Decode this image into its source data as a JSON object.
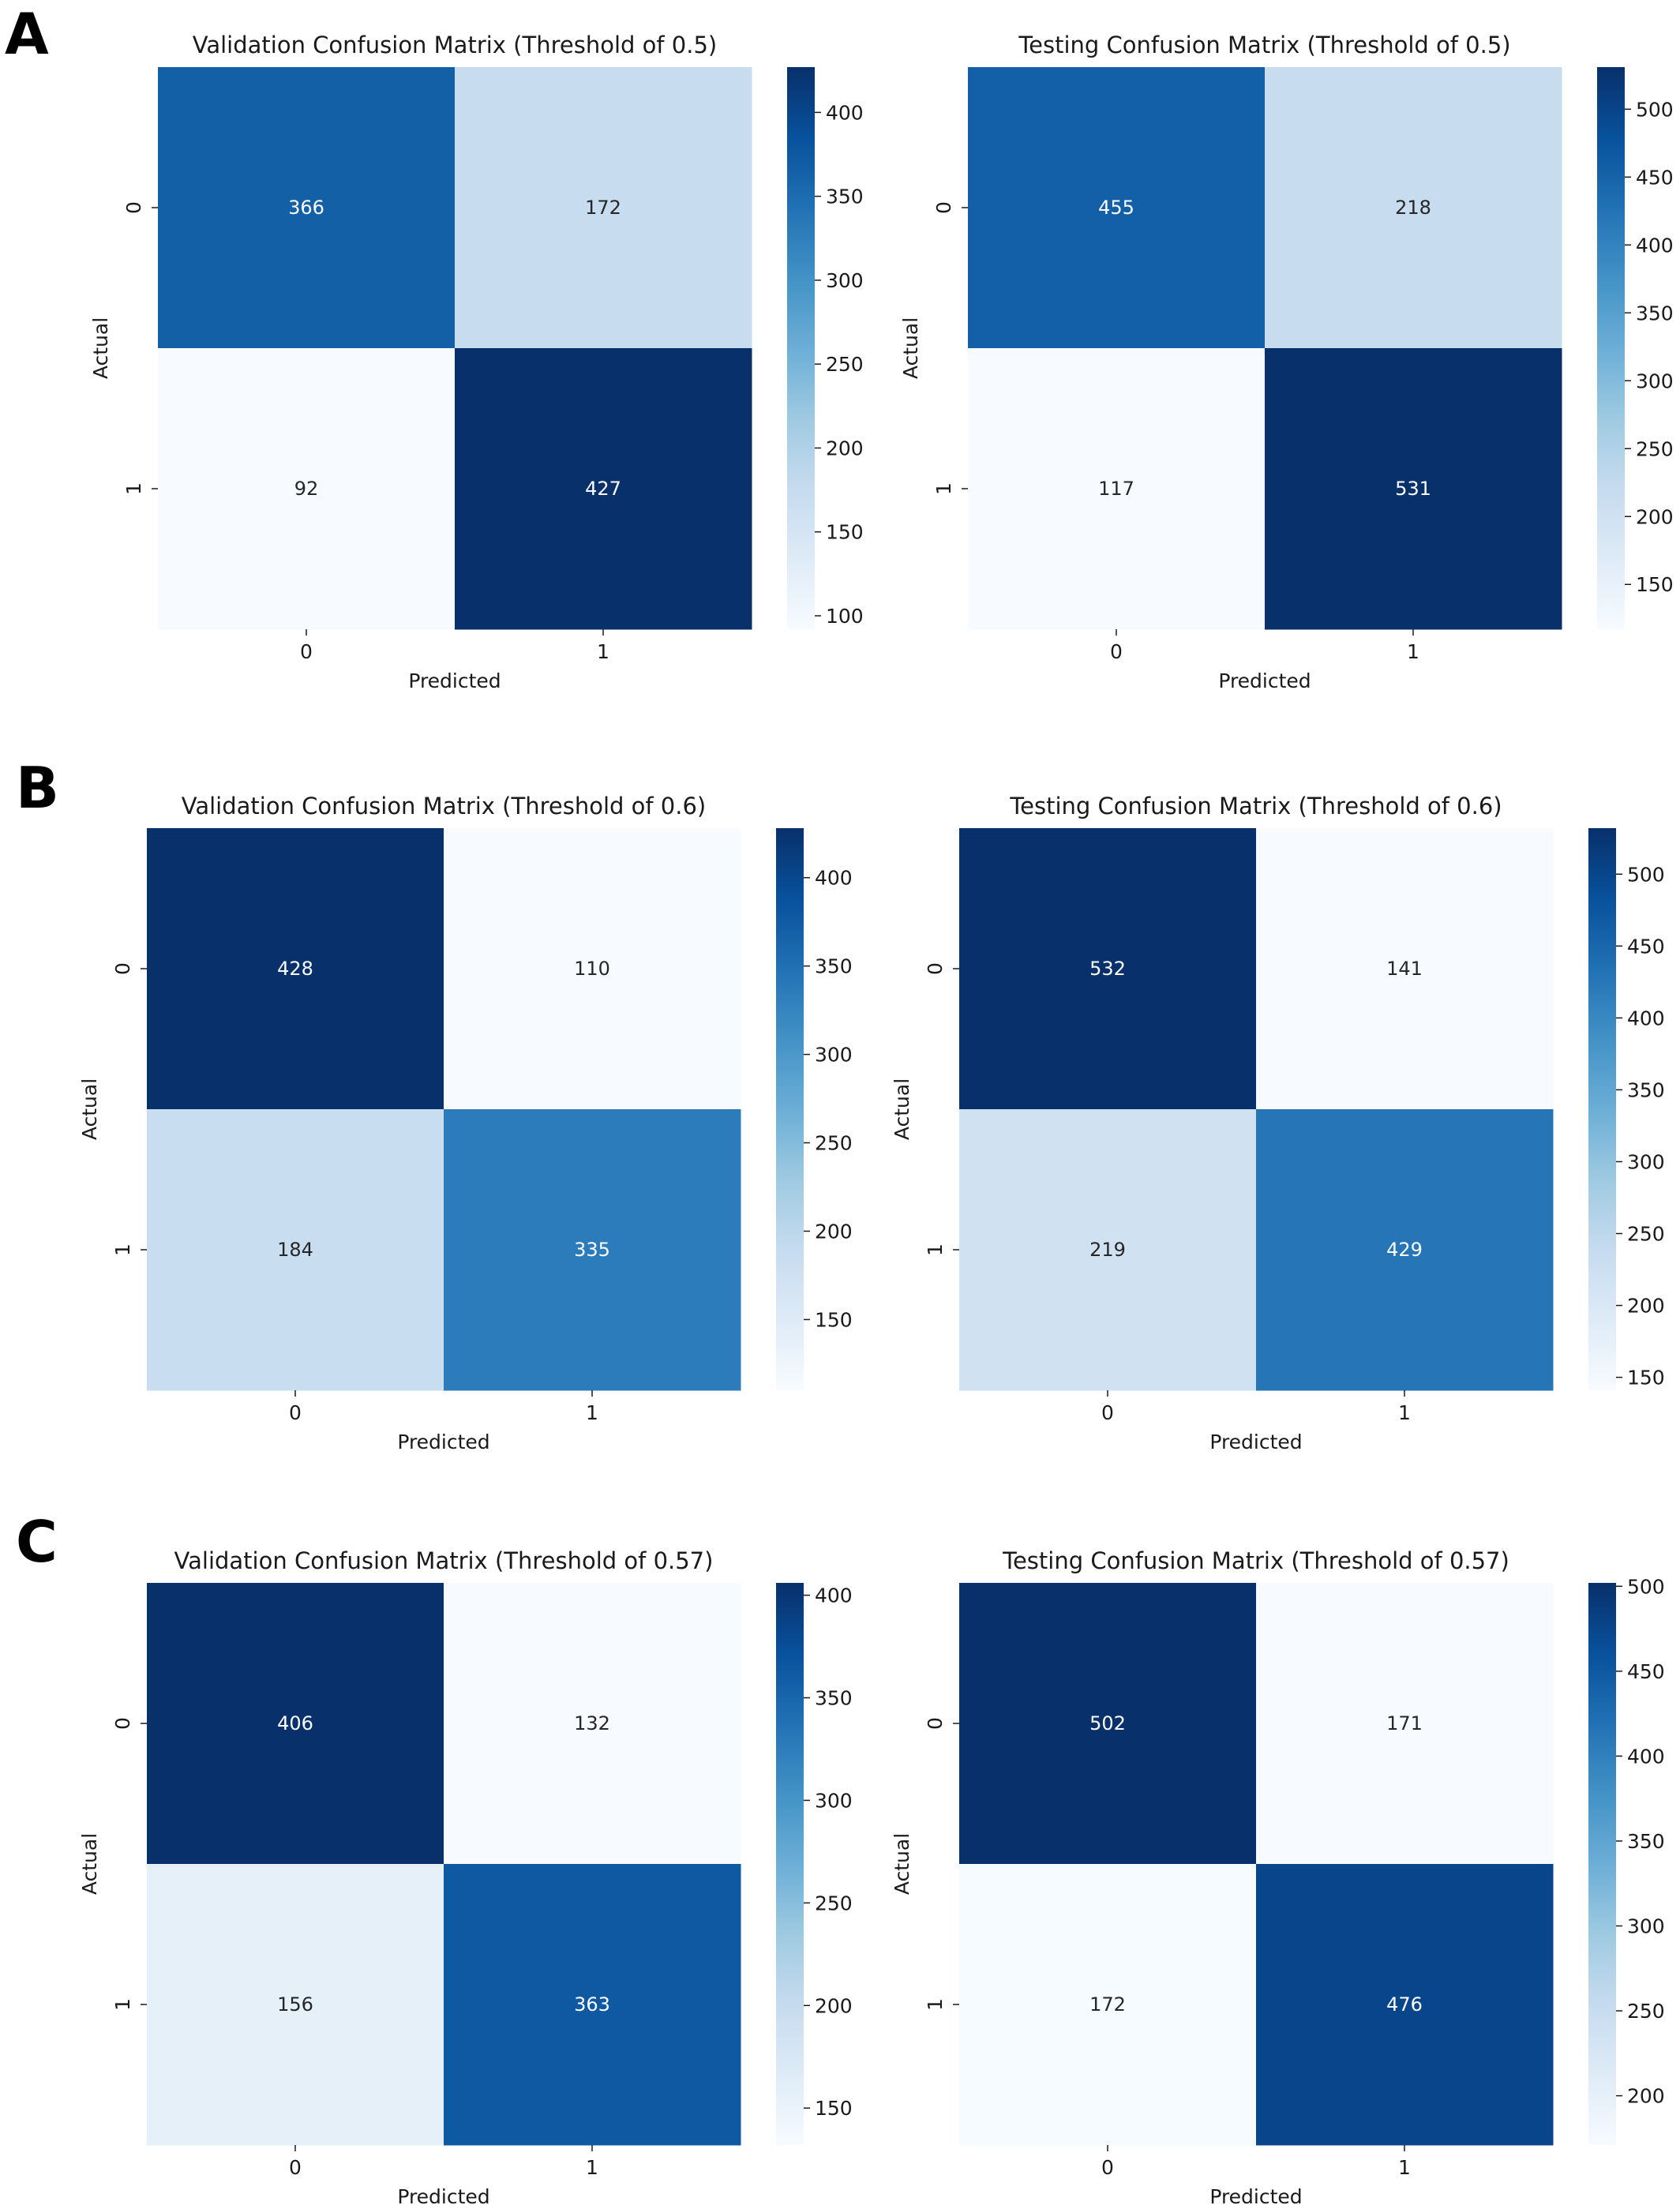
{
  "figure": {
    "panels": [
      {
        "label": "A"
      },
      {
        "label": "B"
      },
      {
        "label": "C"
      }
    ]
  },
  "colormap": [
    "#f7fbff",
    "#deebf7",
    "#c6dbef",
    "#9ecae1",
    "#6baed6",
    "#4292c6",
    "#2171b5",
    "#08519c",
    "#08306b"
  ],
  "chart_data": [
    {
      "type": "heatmap",
      "panel": "A",
      "title": "Validation Confusion Matrix (Threshold of 0.5)",
      "xlabel": "Predicted",
      "ylabel": "Actual",
      "x_categories": [
        "0",
        "1"
      ],
      "y_categories": [
        "0",
        "1"
      ],
      "values": [
        [
          366,
          172
        ],
        [
          92,
          427
        ]
      ],
      "colorbar": {
        "min": 92,
        "max": 427,
        "ticks": [
          100,
          150,
          200,
          250,
          300,
          350,
          400
        ]
      }
    },
    {
      "type": "heatmap",
      "panel": "A",
      "title": "Testing Confusion Matrix (Threshold of 0.5)",
      "xlabel": "Predicted",
      "ylabel": "Actual",
      "x_categories": [
        "0",
        "1"
      ],
      "y_categories": [
        "0",
        "1"
      ],
      "values": [
        [
          455,
          218
        ],
        [
          117,
          531
        ]
      ],
      "colorbar": {
        "min": 117,
        "max": 531,
        "ticks": [
          150,
          200,
          250,
          300,
          350,
          400,
          450,
          500
        ]
      }
    },
    {
      "type": "heatmap",
      "panel": "B",
      "title": "Validation Confusion Matrix (Threshold of 0.6)",
      "xlabel": "Predicted",
      "ylabel": "Actual",
      "x_categories": [
        "0",
        "1"
      ],
      "y_categories": [
        "0",
        "1"
      ],
      "values": [
        [
          428,
          110
        ],
        [
          184,
          335
        ]
      ],
      "colorbar": {
        "min": 110,
        "max": 428,
        "ticks": [
          150,
          200,
          250,
          300,
          350,
          400
        ]
      }
    },
    {
      "type": "heatmap",
      "panel": "B",
      "title": "Testing Confusion Matrix (Threshold of 0.6)",
      "xlabel": "Predicted",
      "ylabel": "Actual",
      "x_categories": [
        "0",
        "1"
      ],
      "y_categories": [
        "0",
        "1"
      ],
      "values": [
        [
          532,
          141
        ],
        [
          219,
          429
        ]
      ],
      "colorbar": {
        "min": 141,
        "max": 532,
        "ticks": [
          150,
          200,
          250,
          300,
          350,
          400,
          450,
          500
        ]
      }
    },
    {
      "type": "heatmap",
      "panel": "C",
      "title": "Validation Confusion Matrix (Threshold of 0.57)",
      "xlabel": "Predicted",
      "ylabel": "Actual",
      "x_categories": [
        "0",
        "1"
      ],
      "y_categories": [
        "0",
        "1"
      ],
      "values": [
        [
          406,
          132
        ],
        [
          156,
          363
        ]
      ],
      "colorbar": {
        "min": 132,
        "max": 406,
        "ticks": [
          150,
          200,
          250,
          300,
          350,
          400
        ]
      }
    },
    {
      "type": "heatmap",
      "panel": "C",
      "title": "Testing Confusion Matrix (Threshold of 0.57)",
      "xlabel": "Predicted",
      "ylabel": "Actual",
      "x_categories": [
        "0",
        "1"
      ],
      "y_categories": [
        "0",
        "1"
      ],
      "values": [
        [
          502,
          171
        ],
        [
          172,
          476
        ]
      ],
      "colorbar": {
        "min": 171,
        "max": 502,
        "ticks": [
          200,
          250,
          300,
          350,
          400,
          450,
          500
        ]
      }
    }
  ]
}
